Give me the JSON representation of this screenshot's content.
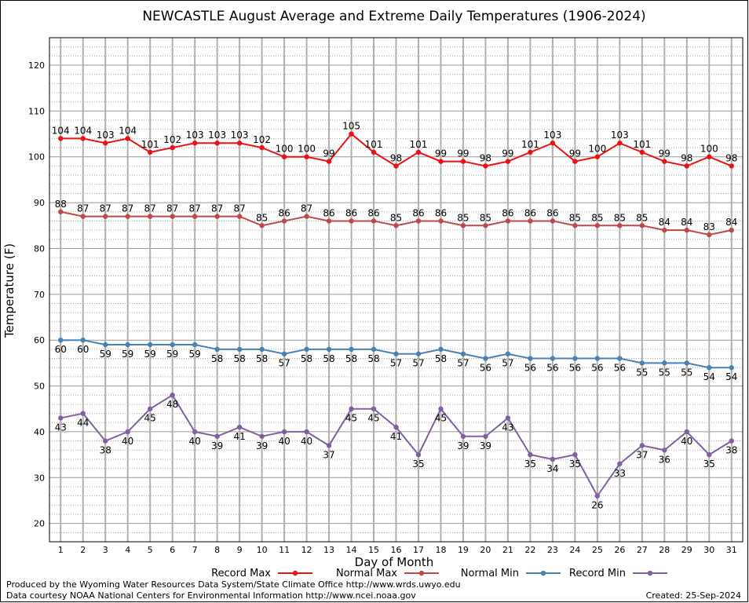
{
  "chart_data": {
    "type": "line",
    "title": "NEWCASTLE August Average and Extreme Daily Temperatures (1906-2024)",
    "xlabel": "Day of Month",
    "ylabel": "Temperature (F)",
    "x": [
      1,
      2,
      3,
      4,
      5,
      6,
      7,
      8,
      9,
      10,
      11,
      12,
      13,
      14,
      15,
      16,
      17,
      18,
      19,
      20,
      21,
      22,
      23,
      24,
      25,
      26,
      27,
      28,
      29,
      30,
      31
    ],
    "ylim": [
      16,
      126
    ],
    "yticks": [
      20,
      30,
      40,
      50,
      60,
      70,
      80,
      90,
      100,
      110,
      120
    ],
    "grid": true,
    "legend_position": "bottom",
    "series": [
      {
        "name": "Record Max",
        "color": "#ee1111",
        "values": [
          104,
          104,
          103,
          104,
          101,
          102,
          103,
          103,
          103,
          102,
          100,
          100,
          99,
          105,
          101,
          98,
          101,
          99,
          99,
          98,
          99,
          101,
          103,
          99,
          100,
          103,
          101,
          99,
          98,
          100,
          98
        ]
      },
      {
        "name": "Normal Max",
        "color": "#c04848",
        "values": [
          88,
          87,
          87,
          87,
          87,
          87,
          87,
          87,
          87,
          85,
          86,
          87,
          86,
          86,
          86,
          85,
          86,
          86,
          85,
          85,
          86,
          86,
          86,
          85,
          85,
          85,
          85,
          84,
          84,
          83,
          84
        ]
      },
      {
        "name": "Normal Min",
        "color": "#4682b4",
        "values": [
          60,
          60,
          59,
          59,
          59,
          59,
          59,
          58,
          58,
          58,
          57,
          58,
          58,
          58,
          58,
          57,
          57,
          58,
          57,
          56,
          57,
          56,
          56,
          56,
          56,
          56,
          55,
          55,
          55,
          54,
          54
        ]
      },
      {
        "name": "Record Min",
        "color": "#8060a0",
        "values": [
          43,
          44,
          38,
          40,
          45,
          48,
          40,
          39,
          41,
          39,
          40,
          40,
          37,
          45,
          45,
          41,
          35,
          45,
          39,
          39,
          43,
          35,
          34,
          35,
          26,
          33,
          37,
          36,
          40,
          35,
          38
        ]
      }
    ]
  },
  "footer": {
    "credit1": "Produced by the Wyoming Water Resources Data System/State Climate Office http://www.wrds.uwyo.edu",
    "credit2": "Data courtesy NOAA National Centers for Environmental Information http://www.ncei.noaa.gov",
    "created": "Created:  25-Sep-2024"
  }
}
